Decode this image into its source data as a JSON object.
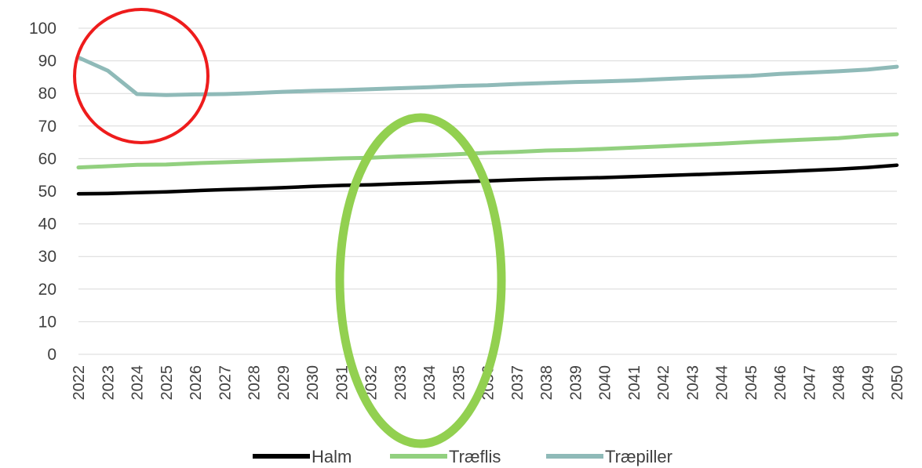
{
  "chart_data": {
    "type": "line",
    "x": [
      2022,
      2023,
      2024,
      2025,
      2026,
      2027,
      2028,
      2029,
      2030,
      2031,
      2032,
      2033,
      2034,
      2035,
      2036,
      2037,
      2038,
      2039,
      2040,
      2041,
      2042,
      2043,
      2044,
      2045,
      2046,
      2047,
      2048,
      2049,
      2050
    ],
    "ylim": [
      0,
      100
    ],
    "yticks": [
      0,
      10,
      20,
      30,
      40,
      50,
      60,
      70,
      80,
      90,
      100
    ],
    "grid": true,
    "legend": "bottom",
    "series": [
      {
        "name": "Halm",
        "color": "#000000",
        "values": [
          49.2,
          49.3,
          49.6,
          49.8,
          50.2,
          50.5,
          50.8,
          51.1,
          51.5,
          51.8,
          52.0,
          52.3,
          52.6,
          52.9,
          53.2,
          53.5,
          53.8,
          54.0,
          54.2,
          54.5,
          54.8,
          55.1,
          55.4,
          55.7,
          56.0,
          56.4,
          56.8,
          57.3,
          58.0
        ]
      },
      {
        "name": "Træflis",
        "color": "#92d07f",
        "values": [
          57.3,
          57.7,
          58.1,
          58.2,
          58.6,
          58.9,
          59.2,
          59.5,
          59.8,
          60.1,
          60.3,
          60.7,
          61.0,
          61.4,
          61.8,
          62.1,
          62.5,
          62.7,
          63.0,
          63.4,
          63.8,
          64.2,
          64.6,
          65.1,
          65.5,
          65.9,
          66.3,
          67.0,
          67.5
        ]
      },
      {
        "name": "Træpiller",
        "color": "#8fbab8",
        "values": [
          91.0,
          87.0,
          79.8,
          79.5,
          79.7,
          79.8,
          80.1,
          80.5,
          80.8,
          81.0,
          81.3,
          81.6,
          81.9,
          82.3,
          82.5,
          82.9,
          83.2,
          83.5,
          83.7,
          84.0,
          84.4,
          84.8,
          85.1,
          85.4,
          86.0,
          86.4,
          86.8,
          87.3,
          88.2
        ]
      }
    ]
  },
  "annotations": {
    "red_circle_color": "#ee1c1c",
    "green_ellipse_color": "#92d050"
  }
}
